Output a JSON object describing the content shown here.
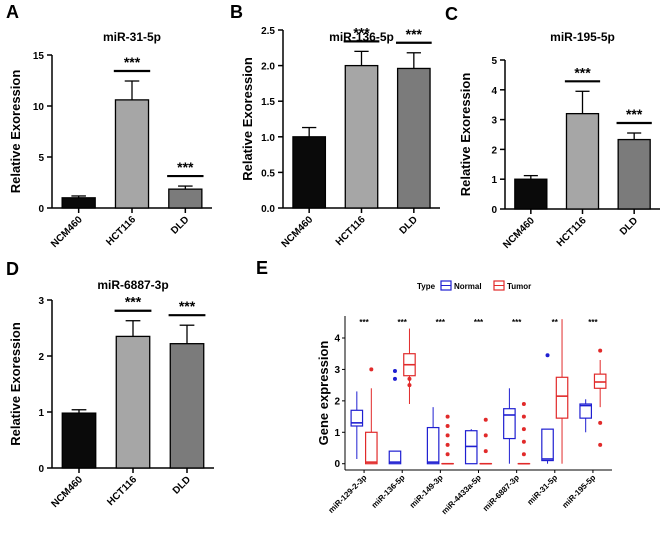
{
  "chart_data": [
    {
      "panel": "A",
      "type": "bar",
      "title": "miR-31-5p",
      "ylabel": "Relative Exoression",
      "categories": [
        "NCM460",
        "HCT116",
        "DLD"
      ],
      "values": [
        1.0,
        10.6,
        1.85
      ],
      "errors": [
        0.18,
        1.85,
        0.3
      ],
      "colors": [
        "#0a0a0a",
        "#a6a6a6",
        "#7b7b7b"
      ],
      "ylim": [
        0,
        15
      ],
      "yticks": [
        0,
        5,
        10,
        15
      ],
      "significance": [
        {
          "label": "***",
          "category": "HCT116"
        },
        {
          "label": "***",
          "category": "DLD"
        }
      ]
    },
    {
      "panel": "B",
      "type": "bar",
      "title": "miR-136-5p",
      "ylabel": "Relative Exoression",
      "categories": [
        "NCM460",
        "HCT116",
        "DLD"
      ],
      "values": [
        1.0,
        2.0,
        1.96
      ],
      "errors": [
        0.13,
        0.2,
        0.22
      ],
      "colors": [
        "#0a0a0a",
        "#a6a6a6",
        "#7b7b7b"
      ],
      "ylim": [
        0,
        2.5
      ],
      "yticks": [
        0.0,
        0.5,
        1.0,
        1.5,
        2.0,
        2.5
      ],
      "significance": [
        {
          "label": "***",
          "category": "HCT116"
        },
        {
          "label": "***",
          "category": "DLD"
        }
      ]
    },
    {
      "panel": "C",
      "type": "bar",
      "title": "miR-195-5p",
      "ylabel": "Relative Exoression",
      "categories": [
        "NCM460",
        "HCT116",
        "DLD"
      ],
      "values": [
        1.0,
        3.2,
        2.33
      ],
      "errors": [
        0.12,
        0.75,
        0.22
      ],
      "colors": [
        "#0a0a0a",
        "#a6a6a6",
        "#7b7b7b"
      ],
      "ylim": [
        0,
        5
      ],
      "yticks": [
        0,
        1,
        2,
        3,
        4,
        5
      ],
      "significance": [
        {
          "label": "***",
          "category": "HCT116"
        },
        {
          "label": "***",
          "category": "DLD"
        }
      ]
    },
    {
      "panel": "D",
      "type": "bar",
      "title": "miR-6887-3p",
      "ylabel": "Relative Exoression",
      "categories": [
        "NCM460",
        "HCT116",
        "DLD"
      ],
      "values": [
        0.98,
        2.35,
        2.22
      ],
      "errors": [
        0.06,
        0.28,
        0.33
      ],
      "colors": [
        "#0a0a0a",
        "#a6a6a6",
        "#7b7b7b"
      ],
      "ylim": [
        0,
        3
      ],
      "yticks": [
        0,
        1,
        2,
        3
      ],
      "significance": [
        {
          "label": "***",
          "category": "HCT116"
        },
        {
          "label": "***",
          "category": "DLD"
        }
      ]
    },
    {
      "panel": "E",
      "type": "boxplot",
      "ylabel": "Gene expression",
      "legend_title": "Type",
      "legend": [
        {
          "name": "Normal",
          "color": "#1f1fd1"
        },
        {
          "name": "Tumor",
          "color": "#e12a2a"
        }
      ],
      "categories": [
        "miR-129-2-3p",
        "miR-136-5p",
        "miR-149-3p",
        "miR-4433a-5p",
        "miR-6887-3p",
        "miR-31-5p",
        "miR-195-5p"
      ],
      "significance": [
        "***",
        "***",
        "***",
        "***",
        "***",
        "**",
        "***"
      ],
      "ylim": [
        -0.2,
        4.7
      ],
      "yticks": [
        0,
        1,
        2,
        3,
        4
      ],
      "normal": [
        {
          "min": 0.15,
          "q1": 1.2,
          "median": 1.3,
          "q3": 1.7,
          "max": 2.3,
          "outliers": []
        },
        {
          "min": 0.0,
          "q1": 0.0,
          "median": 0.05,
          "q3": 0.4,
          "max": 0.4,
          "outliers": [
            2.7,
            2.95
          ]
        },
        {
          "min": 0.0,
          "q1": 0.0,
          "median": 0.05,
          "q3": 1.15,
          "max": 1.8,
          "outliers": []
        },
        {
          "min": 0.0,
          "q1": 0.0,
          "median": 0.55,
          "q3": 1.05,
          "max": 1.1,
          "outliers": []
        },
        {
          "min": 0.0,
          "q1": 0.8,
          "median": 1.55,
          "q3": 1.75,
          "max": 2.4,
          "outliers": []
        },
        {
          "min": 0.0,
          "q1": 0.1,
          "median": 0.15,
          "q3": 1.1,
          "max": 1.1,
          "outliers": [
            3.45
          ]
        },
        {
          "min": 1.0,
          "q1": 1.45,
          "median": 1.85,
          "q3": 1.9,
          "max": 2.05,
          "outliers": []
        }
      ],
      "tumor": [
        {
          "min": 0.0,
          "q1": 0.0,
          "median": 0.05,
          "q3": 1.0,
          "max": 2.4,
          "outliers": [
            3.0
          ]
        },
        {
          "min": 1.9,
          "q1": 2.8,
          "median": 3.15,
          "q3": 3.5,
          "max": 4.3,
          "outliers": [
            2.5,
            2.7
          ]
        },
        {
          "min": 0.0,
          "q1": 0.0,
          "median": 0.0,
          "q3": 0.0,
          "max": 0.0,
          "outliers": [
            0.3,
            0.6,
            0.9,
            1.2,
            1.5
          ]
        },
        {
          "min": 0.0,
          "q1": 0.0,
          "median": 0.0,
          "q3": 0.0,
          "max": 0.0,
          "outliers": [
            0.4,
            0.9,
            1.4
          ]
        },
        {
          "min": 0.0,
          "q1": 0.0,
          "median": 0.0,
          "q3": 0.0,
          "max": 0.0,
          "outliers": [
            0.3,
            0.7,
            1.1,
            1.5,
            1.9
          ]
        },
        {
          "min": 0.0,
          "q1": 1.45,
          "median": 2.15,
          "q3": 2.75,
          "max": 4.6,
          "outliers": []
        },
        {
          "min": 1.8,
          "q1": 2.4,
          "median": 2.6,
          "q3": 2.85,
          "max": 3.3,
          "outliers": [
            0.6,
            1.3,
            3.6
          ]
        }
      ]
    }
  ]
}
